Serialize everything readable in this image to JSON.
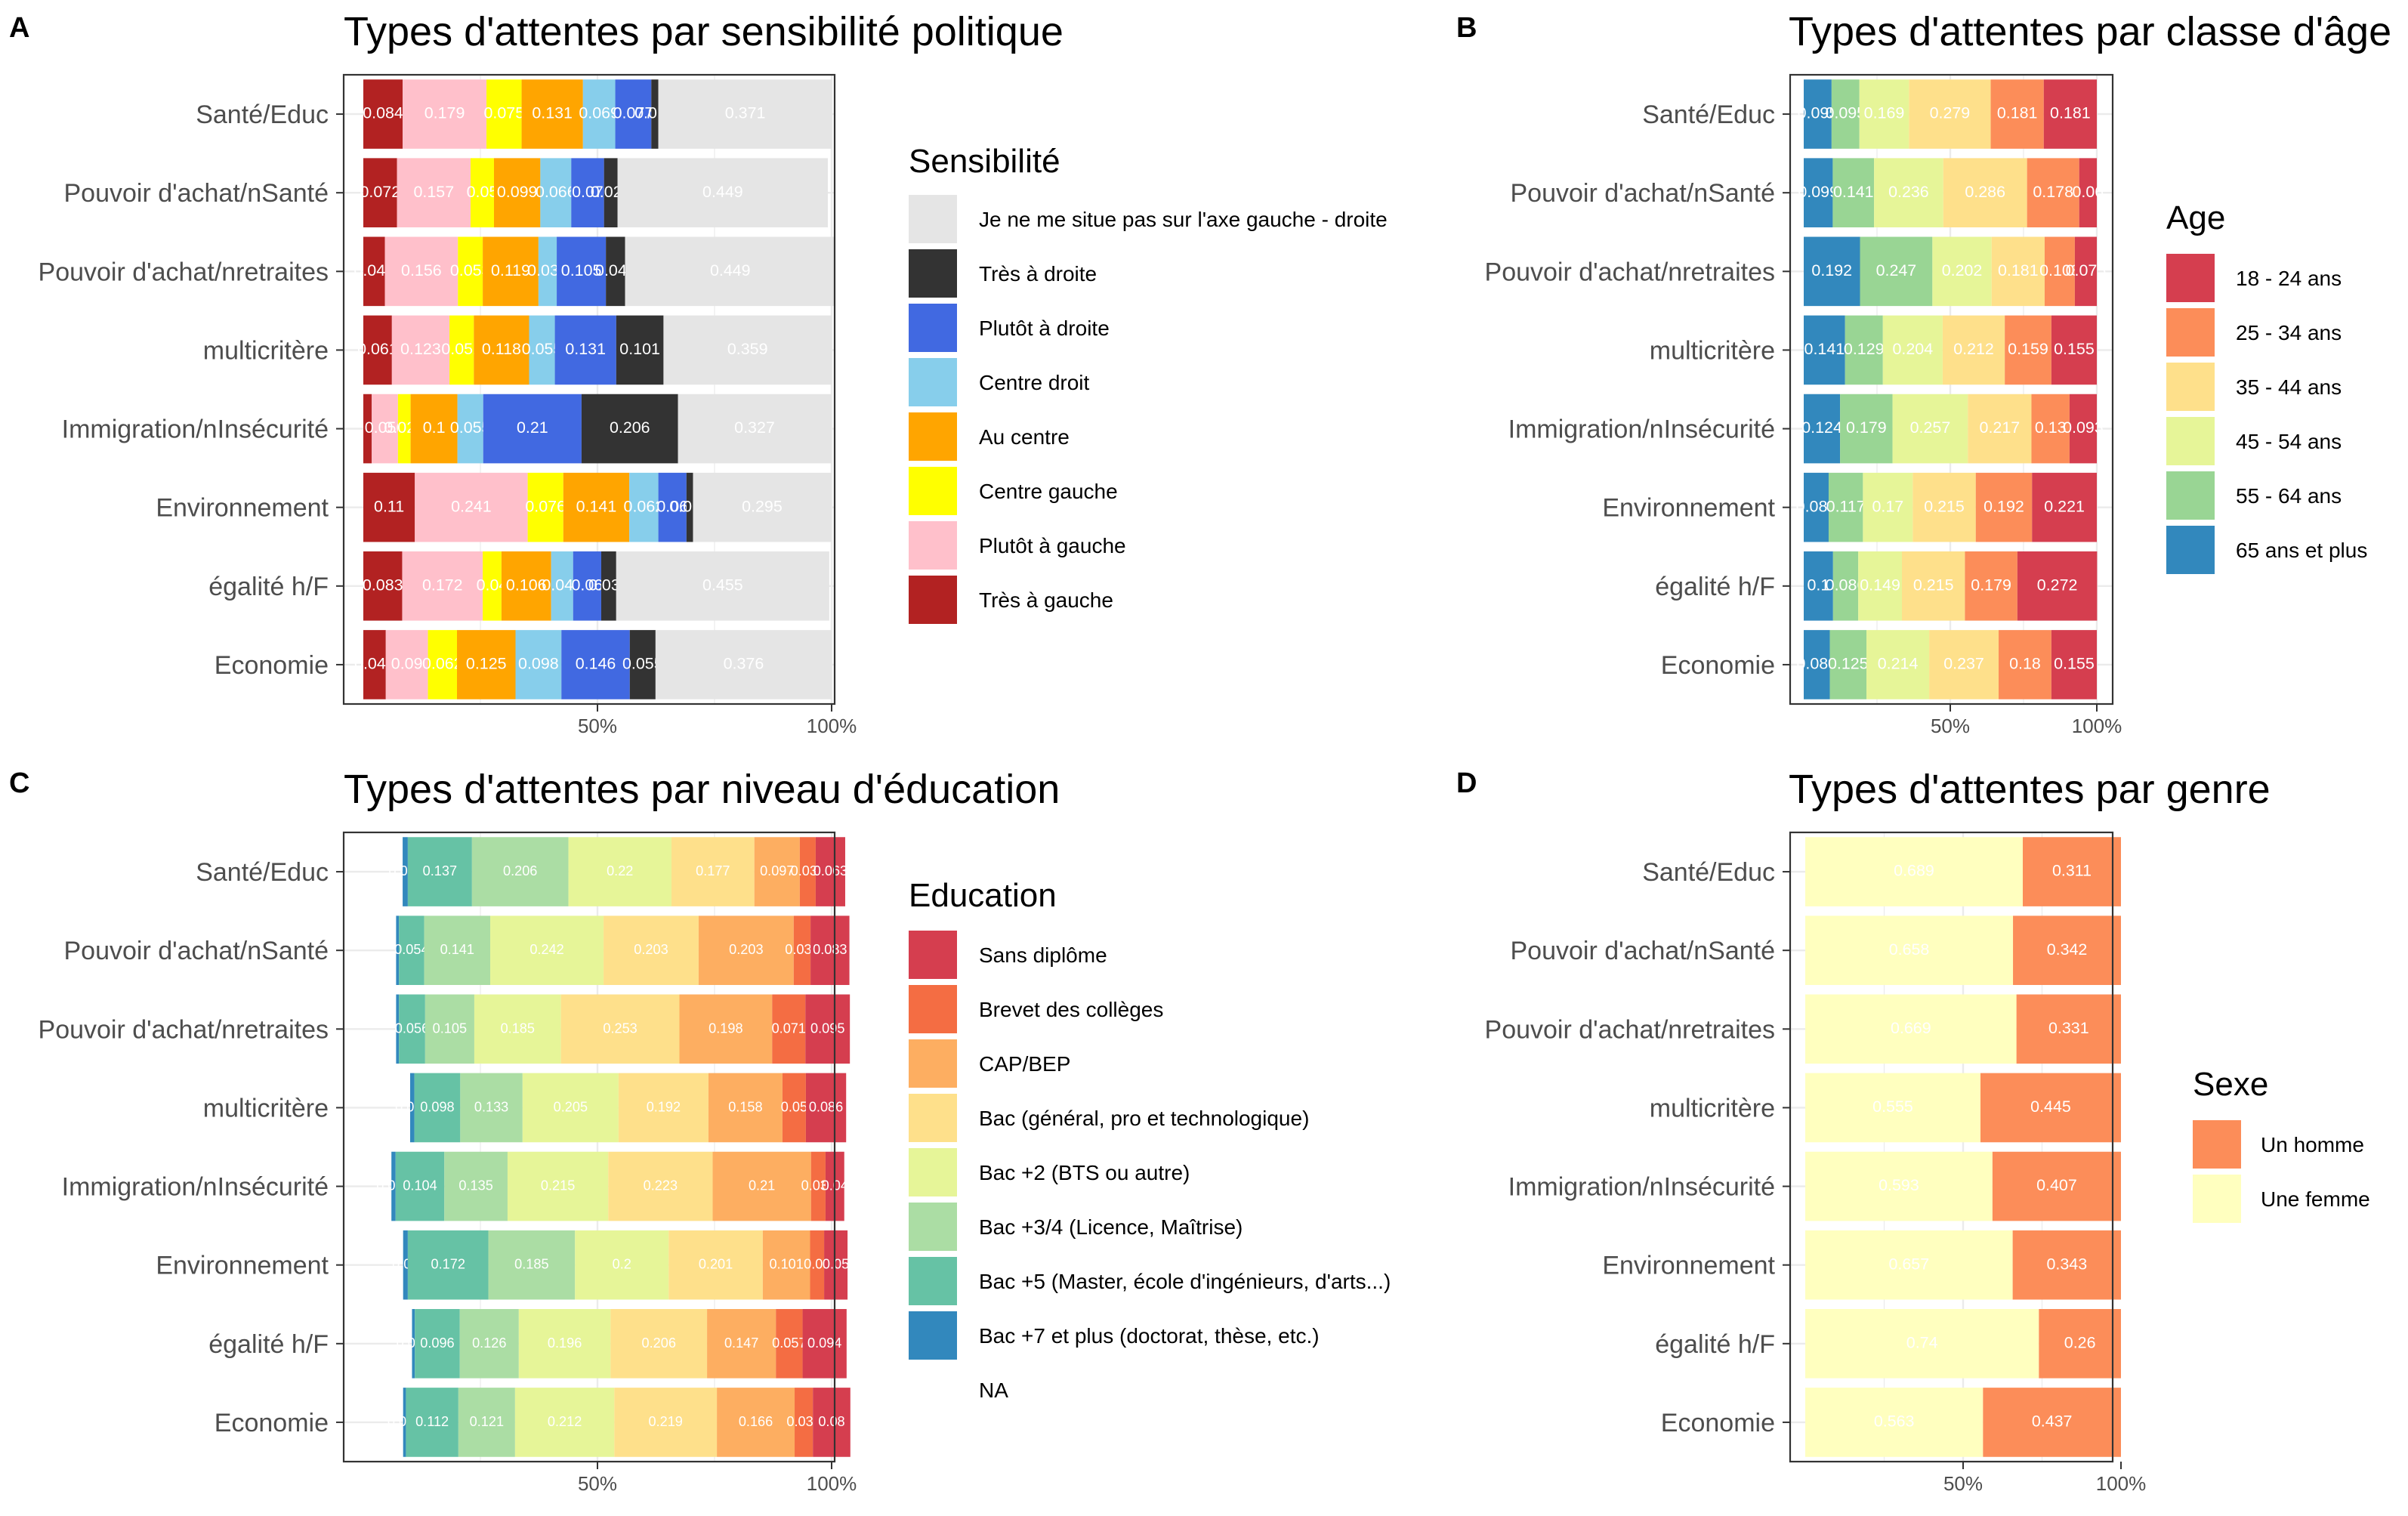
{
  "panels": [
    {
      "letter": "A"
    },
    {
      "letter": "B"
    },
    {
      "letter": "C"
    },
    {
      "letter": "D"
    }
  ],
  "chart_data": [
    {
      "type": "bar",
      "stacked": true,
      "orientation": "horizontal",
      "title": "Types d'attentes par sensibilité politique",
      "legend_title": "Sensibilité",
      "legend_position": "right",
      "categories": [
        "Santé/Educ",
        "Pouvoir d'achat/nSanté",
        "Pouvoir d'achat/nretraites",
        "multicritère",
        "Immigration/nInsécurité",
        "Environnement",
        "égalité h/F",
        "Economie"
      ],
      "x_ticks": [
        "50%",
        "100%"
      ],
      "xlim": [
        0,
        1
      ],
      "grid": true,
      "series": [
        {
          "name": "Très à gauche",
          "color": "#B22222",
          "values": [
            0.084,
            0.072,
            0.046,
            0.061,
            0.018,
            0.11,
            0.083,
            0.048
          ],
          "labels": [
            "0.084",
            "0.072",
            "0.046",
            "0.061",
            "",
            "0.11",
            "0.083",
            "0.048"
          ]
        },
        {
          "name": "Plutôt à gauche",
          "color": "#FFC0CB",
          "values": [
            0.179,
            0.157,
            0.156,
            0.123,
            0.056,
            0.241,
            0.172,
            0.09
          ],
          "labels": [
            "0.179",
            "0.157",
            "0.156",
            "0.123",
            "0.056",
            "0.241",
            "0.172",
            "0.09"
          ]
        },
        {
          "name": "Centre gauche",
          "color": "#FFFF00",
          "values": [
            0.075,
            0.05,
            0.053,
            0.052,
            0.027,
            0.076,
            0.04,
            0.062
          ],
          "labels": [
            "0.075",
            "0.05",
            "0.053",
            "0.052",
            "0.027",
            "0.076",
            "0.04",
            "0.062"
          ]
        },
        {
          "name": "Au centre",
          "color": "#FFA500",
          "values": [
            0.131,
            0.099,
            0.119,
            0.118,
            0.1,
            0.141,
            0.106,
            0.125
          ],
          "labels": [
            "0.131",
            "0.099",
            "0.119",
            "0.118",
            "0.1",
            "0.141",
            "0.106",
            "0.125"
          ]
        },
        {
          "name": "Centre droit",
          "color": "#87CEEB",
          "values": [
            0.069,
            0.066,
            0.039,
            0.055,
            0.055,
            0.062,
            0.047,
            0.098
          ],
          "labels": [
            "0.069",
            "0.066",
            "0.039",
            "0.055",
            "0.055",
            "0.062",
            "0.047",
            "0.098"
          ]
        },
        {
          "name": "Plutôt à droite",
          "color": "#4169E1",
          "values": [
            0.077,
            0.07,
            0.105,
            0.131,
            0.21,
            0.06,
            0.06,
            0.146
          ],
          "labels": [
            "0.077",
            "0.07",
            "0.105",
            "0.131",
            "0.21",
            "0.06",
            "0.06",
            "0.146"
          ]
        },
        {
          "name": "Très à droite",
          "color": "#333333",
          "values": [
            0.015,
            0.029,
            0.041,
            0.101,
            0.206,
            0.014,
            0.032,
            0.055
          ],
          "labels": [
            "0.015",
            "0.029",
            "0.041",
            "0.101",
            "0.206",
            "0.014",
            "0.032",
            "0.055"
          ]
        },
        {
          "name": "Je ne me situe pas sur l'axe gauche - droite",
          "color": "#E5E5E5",
          "values": [
            0.371,
            0.449,
            0.449,
            0.359,
            0.327,
            0.295,
            0.455,
            0.376
          ],
          "labels": [
            "0.371",
            "0.449",
            "0.449",
            "0.359",
            "0.327",
            "0.295",
            "0.455",
            "0.376"
          ]
        }
      ]
    },
    {
      "type": "bar",
      "stacked": true,
      "orientation": "horizontal",
      "title": "Types d'attentes par classe d'âge",
      "legend_title": "Age",
      "legend_position": "right",
      "categories": [
        "Santé/Educ",
        "Pouvoir d'achat/nSanté",
        "Pouvoir d'achat/nretraites",
        "multicritère",
        "Immigration/nInsécurité",
        "Environnement",
        "égalité h/F",
        "Economie"
      ],
      "x_ticks": [
        "50%",
        "100%"
      ],
      "xlim": [
        0,
        1
      ],
      "grid": true,
      "series": [
        {
          "name": "65 ans et plus",
          "color": "#3288BD",
          "values": [
            0.095,
            0.099,
            0.192,
            0.141,
            0.124,
            0.085,
            0.1,
            0.089
          ],
          "labels": [
            "0.095",
            "0.099",
            "0.192",
            "0.141",
            "0.124",
            "0.085",
            "0.1",
            "0.089"
          ]
        },
        {
          "name": "55 - 64 ans",
          "color": "#99D594",
          "values": [
            0.095,
            0.141,
            0.247,
            0.129,
            0.179,
            0.117,
            0.086,
            0.125
          ],
          "labels": [
            "0.095",
            "0.141",
            "0.247",
            "0.129",
            "0.179",
            "0.117",
            "0.086",
            "0.125"
          ]
        },
        {
          "name": "45 - 54 ans",
          "color": "#E6F598",
          "values": [
            0.169,
            0.236,
            0.202,
            0.204,
            0.257,
            0.17,
            0.149,
            0.214
          ],
          "labels": [
            "0.169",
            "0.236",
            "0.202",
            "0.204",
            "0.257",
            "0.17",
            "0.149",
            "0.214"
          ]
        },
        {
          "name": "35 - 44 ans",
          "color": "#FEE08B",
          "values": [
            0.279,
            0.286,
            0.181,
            0.212,
            0.217,
            0.215,
            0.215,
            0.237
          ],
          "labels": [
            "0.279",
            "0.286",
            "0.181",
            "0.212",
            "0.217",
            "0.215",
            "0.215",
            "0.237"
          ]
        },
        {
          "name": "25 - 34 ans",
          "color": "#FC8D59",
          "values": [
            0.181,
            0.178,
            0.103,
            0.159,
            0.13,
            0.192,
            0.179,
            0.18
          ],
          "labels": [
            "0.181",
            "0.178",
            "0.103",
            "0.159",
            "0.13",
            "0.192",
            "0.179",
            "0.18"
          ]
        },
        {
          "name": "18 - 24 ans",
          "color": "#D53E4F",
          "values": [
            0.181,
            0.06,
            0.075,
            0.155,
            0.093,
            0.221,
            0.272,
            0.155
          ],
          "labels": [
            "0.181",
            "0.06",
            "0.075",
            "0.155",
            "0.093",
            "0.221",
            "0.272",
            "0.155"
          ]
        }
      ]
    },
    {
      "type": "bar",
      "stacked": true,
      "orientation": "horizontal",
      "title": "Types d'attentes par niveau d'éducation",
      "legend_title": "Education",
      "legend_position": "right",
      "categories": [
        "Santé/Educ",
        "Pouvoir d'achat/nSanté",
        "Pouvoir d'achat/nretraites",
        "multicritère",
        "Immigration/nInsécurité",
        "Environnement",
        "égalité h/F",
        "Economie"
      ],
      "x_ticks": [
        "50%",
        "100%"
      ],
      "xlim": [
        0,
        1
      ],
      "grid": true,
      "series": [
        {
          "name": "NA",
          "color": "#FFFFFF",
          "values": [
            0.084,
            0.07,
            0.07,
            0.1,
            0.06,
            0.085,
            0.104,
            0.085
          ],
          "labels": [
            "",
            "",
            "",
            "",
            "",
            "",
            "",
            ""
          ]
        },
        {
          "name": "Bac +7 et plus (doctorat, thèse, etc.)",
          "color": "#3288BD",
          "values": [
            0.011,
            0.006,
            0.006,
            0.009,
            0.009,
            0.01,
            0.006,
            0.006
          ],
          "labels": [
            "0.011",
            "",
            "",
            "0.009",
            "0.009",
            "0.01",
            "0.006",
            "0.006"
          ]
        },
        {
          "name": "Bac +5 (Master, école d'ingénieurs, d'arts...)",
          "color": "#66C2A5",
          "values": [
            0.137,
            0.054,
            0.056,
            0.098,
            0.104,
            0.172,
            0.096,
            0.112
          ],
          "labels": [
            "0.137",
            "0.054",
            "0.056",
            "0.098",
            "0.104",
            "0.172",
            "0.096",
            "0.112"
          ]
        },
        {
          "name": "Bac +3/4 (Licence, Maîtrise)",
          "color": "#ABDDA4",
          "values": [
            0.206,
            0.141,
            0.105,
            0.133,
            0.135,
            0.185,
            0.126,
            0.121
          ],
          "labels": [
            "0.206",
            "0.141",
            "0.105",
            "0.133",
            "0.135",
            "0.185",
            "0.126",
            "0.121"
          ]
        },
        {
          "name": "Bac +2 (BTS ou autre)",
          "color": "#E6F598",
          "values": [
            0.22,
            0.242,
            0.185,
            0.205,
            0.215,
            0.2,
            0.196,
            0.212
          ],
          "labels": [
            "0.22",
            "0.242",
            "0.185",
            "0.205",
            "0.215",
            "0.2",
            "0.196",
            "0.212"
          ]
        },
        {
          "name": "Bac (général, pro et technologique)",
          "color": "#FEE08B",
          "values": [
            0.177,
            0.203,
            0.253,
            0.192,
            0.223,
            0.201,
            0.206,
            0.219
          ],
          "labels": [
            "0.177",
            "0.203",
            "0.253",
            "0.192",
            "0.223",
            "0.201",
            "0.206",
            "0.219"
          ]
        },
        {
          "name": "CAP/BEP",
          "color": "#FDAE61",
          "values": [
            0.097,
            0.203,
            0.198,
            0.158,
            0.21,
            0.101,
            0.147,
            0.166
          ],
          "labels": [
            "0.097",
            "0.203",
            "0.198",
            "0.158",
            "0.21",
            "0.101",
            "0.147",
            "0.166"
          ]
        },
        {
          "name": "Brevet des collèges",
          "color": "#F46D43",
          "values": [
            0.034,
            0.036,
            0.071,
            0.05,
            0.031,
            0.03,
            0.057,
            0.039
          ],
          "labels": [
            "0.034",
            "0.036",
            "0.071",
            "0.05",
            "0.031",
            "0.03",
            "0.057",
            "0.039"
          ]
        },
        {
          "name": "Sans diplôme",
          "color": "#D53E4F",
          "values": [
            0.063,
            0.083,
            0.095,
            0.086,
            0.04,
            0.05,
            0.094,
            0.08
          ],
          "labels": [
            "0.063",
            "0.083",
            "0.095",
            "0.086",
            "0.04",
            "0.05",
            "0.094",
            "0.08"
          ]
        }
      ]
    },
    {
      "type": "bar",
      "stacked": true,
      "orientation": "horizontal",
      "title": "Types d'attentes par genre",
      "legend_title": "Sexe",
      "legend_position": "right",
      "categories": [
        "Santé/Educ",
        "Pouvoir d'achat/nSanté",
        "Pouvoir d'achat/nretraites",
        "multicritère",
        "Immigration/nInsécurité",
        "Environnement",
        "égalité h/F",
        "Economie"
      ],
      "x_ticks": [
        "50%",
        "100%"
      ],
      "xlim": [
        0,
        1
      ],
      "grid": true,
      "series": [
        {
          "name": "Une femme",
          "color": "#FFFFBF",
          "values": [
            0.689,
            0.658,
            0.669,
            0.555,
            0.593,
            0.657,
            0.74,
            0.563
          ],
          "labels": [
            "0.689",
            "0.658",
            "0.669",
            "0.555",
            "0.593",
            "0.657",
            "0.74",
            "0.563"
          ]
        },
        {
          "name": "Un homme",
          "color": "#FC8D59",
          "values": [
            0.311,
            0.342,
            0.331,
            0.445,
            0.407,
            0.343,
            0.26,
            0.437
          ],
          "labels": [
            "0.311",
            "0.342",
            "0.331",
            "0.445",
            "0.407",
            "0.343",
            "0.26",
            "0.437"
          ]
        }
      ]
    }
  ]
}
